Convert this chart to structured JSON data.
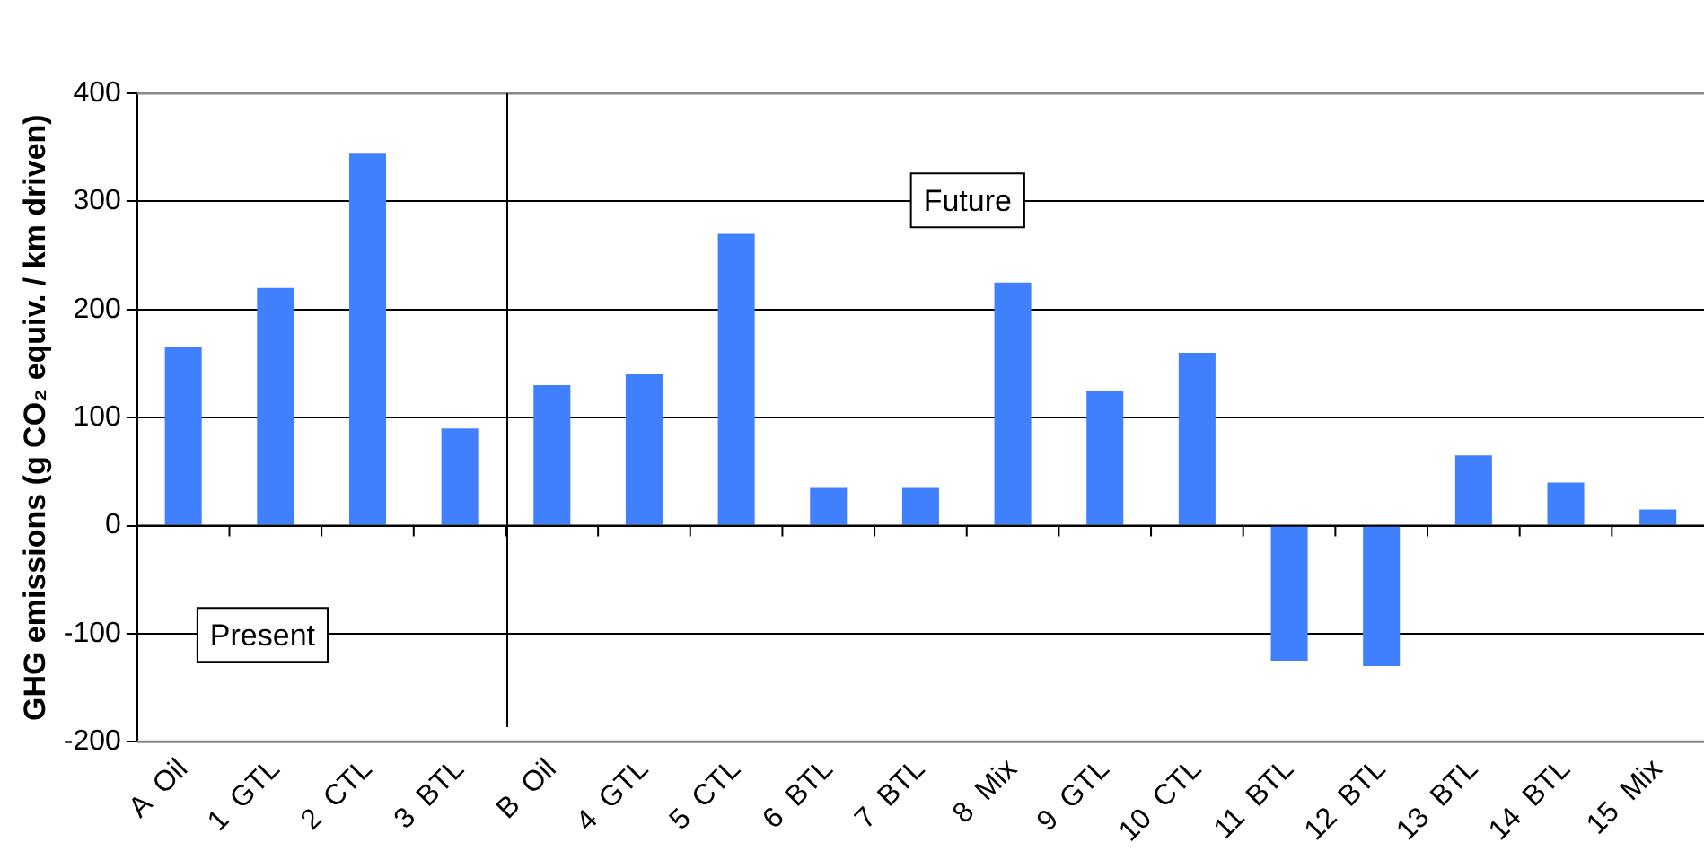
{
  "chart_data": {
    "type": "bar",
    "ylabel": "GHG emissions (g CO₂ equiv. / km driven)",
    "categories": [
      "A  Oil",
      "1  GTL",
      "2  CTL",
      "3  BTL",
      "B  Oil",
      "4  GTL",
      "5  CTL",
      "6  BTL",
      "7  BTL",
      "8  Mix",
      "9  GTL",
      "10  CTL",
      "11  BTL",
      "12  BTL",
      "13  BTL",
      "14  BTL",
      "15  Mix"
    ],
    "values": [
      165,
      220,
      345,
      90,
      130,
      140,
      270,
      35,
      35,
      225,
      125,
      160,
      -125,
      -130,
      65,
      40,
      15
    ],
    "color": "#4080ff",
    "ylim": [
      -200,
      400
    ],
    "yticks": [
      -200,
      -100,
      0,
      100,
      200,
      300,
      400
    ],
    "grid": "y",
    "legend": false,
    "annotations": [
      "Present",
      "Future"
    ]
  }
}
